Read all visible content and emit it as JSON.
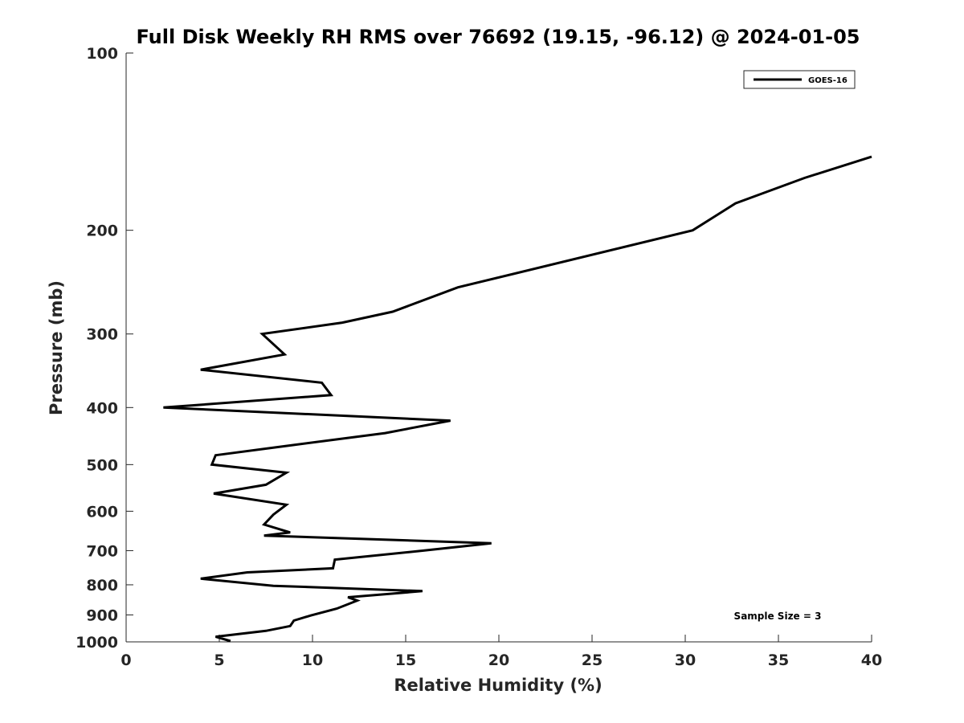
{
  "chart_data": {
    "type": "line",
    "title": "Full Disk Weekly RH RMS over 76692 (19.15, -96.12) @ 2024-01-05",
    "xlabel": "Relative Humidity (%)",
    "ylabel": "Pressure (mb)",
    "xlim": [
      0,
      40
    ],
    "ylim": [
      100,
      1000
    ],
    "yscale": "log",
    "yreversed": true,
    "xticks": [
      0,
      5,
      10,
      15,
      20,
      25,
      30,
      35,
      40
    ],
    "yticks": [
      100,
      200,
      300,
      400,
      500,
      600,
      700,
      800,
      900,
      1000
    ],
    "grid": false,
    "legend_position": "top-right",
    "annotation": "Sample Size = 3",
    "series": [
      {
        "name": "GOES-16",
        "color": "#000000",
        "points": [
          [
            40.0,
            150
          ],
          [
            36.4,
            163
          ],
          [
            32.7,
            180
          ],
          [
            30.4,
            200
          ],
          [
            17.8,
            250
          ],
          [
            14.3,
            275
          ],
          [
            11.6,
            287
          ],
          [
            7.3,
            300
          ],
          [
            8.5,
            325
          ],
          [
            4.0,
            345
          ],
          [
            10.5,
            363
          ],
          [
            11.0,
            381
          ],
          [
            2.0,
            400
          ],
          [
            17.4,
            421
          ],
          [
            13.9,
            442
          ],
          [
            8.1,
            467
          ],
          [
            4.8,
            482
          ],
          [
            4.6,
            500
          ],
          [
            8.6,
            516
          ],
          [
            7.5,
            541
          ],
          [
            4.7,
            560
          ],
          [
            8.6,
            585
          ],
          [
            7.9,
            608
          ],
          [
            7.4,
            632
          ],
          [
            8.8,
            652
          ],
          [
            7.4,
            660
          ],
          [
            19.6,
            680
          ],
          [
            15.9,
            700
          ],
          [
            11.2,
            725
          ],
          [
            11.1,
            750
          ],
          [
            6.5,
            762
          ],
          [
            4.0,
            781
          ],
          [
            7.9,
            803
          ],
          [
            15.9,
            820
          ],
          [
            11.9,
            840
          ],
          [
            12.4,
            851
          ],
          [
            11.3,
            878
          ],
          [
            9.9,
            902
          ],
          [
            9.0,
            920
          ],
          [
            8.8,
            940
          ],
          [
            7.5,
            958
          ],
          [
            4.8,
            980
          ],
          [
            5.6,
            997
          ]
        ]
      }
    ]
  }
}
